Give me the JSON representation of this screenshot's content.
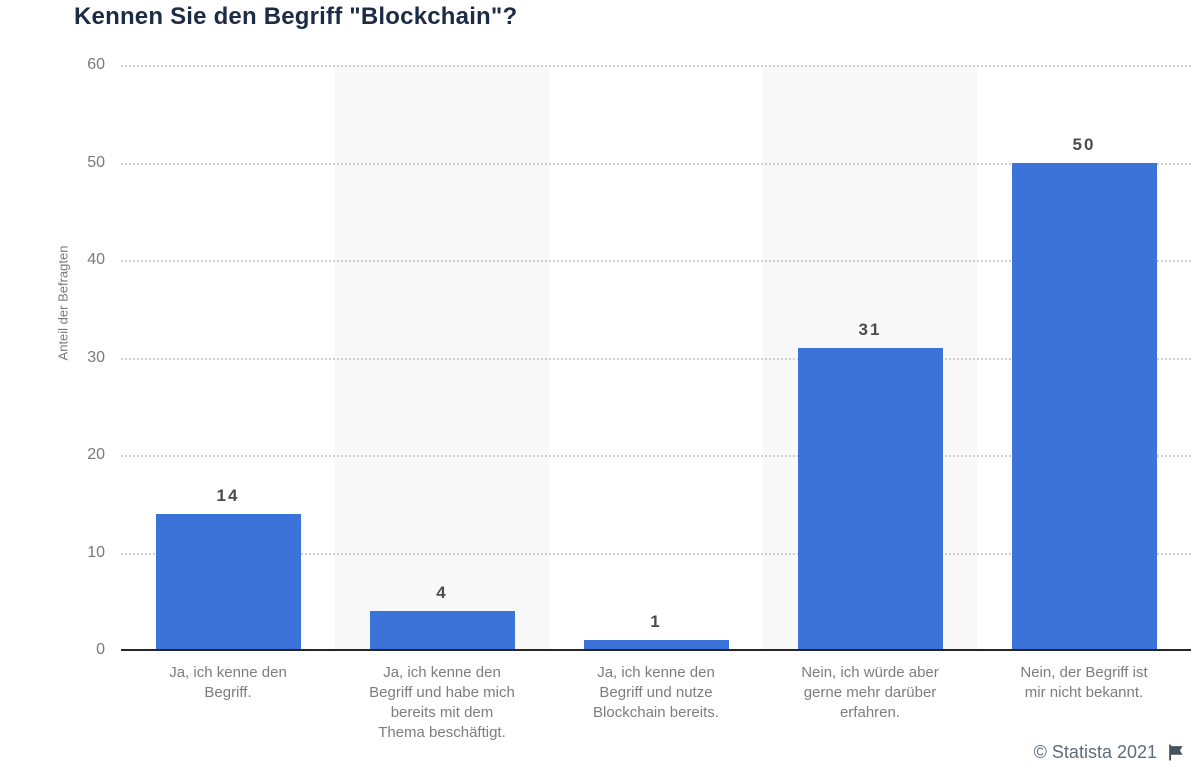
{
  "chart_data": {
    "type": "bar",
    "title": "Kennen Sie den Begriff \"Blockchain\"?",
    "ylabel": "Anteil der Befragten",
    "xlabel": "",
    "categories": [
      "Ja, ich kenne den Begriff.",
      "Ja, ich kenne den Begriff und habe mich bereits mit dem Thema beschäftigt.",
      "Ja, ich kenne den Begriff und nutze Blockchain bereits.",
      "Nein, ich würde aber gerne mehr darüber erfahren.",
      "Nein, der Begriff ist mir nicht bekannt."
    ],
    "categories_display_lines": [
      [
        "Ja, ich kenne den",
        "Begriff."
      ],
      [
        "Ja, ich kenne den",
        "Begriff und habe mich",
        "bereits mit dem",
        "Thema beschäftigt."
      ],
      [
        "Ja, ich kenne den",
        "Begriff und nutze",
        "Blockchain bereits."
      ],
      [
        "Nein, ich würde aber",
        "gerne mehr darüber",
        "erfahren."
      ],
      [
        "Nein, der Begriff ist",
        "mir nicht bekannt."
      ]
    ],
    "values": [
      14,
      4,
      1,
      31,
      50
    ],
    "ylim": [
      0,
      60
    ],
    "yticks": [
      0,
      10,
      20,
      30,
      40,
      50,
      60
    ],
    "grid": "horizontal-dotted",
    "legend": null,
    "colors": {
      "bar": "#3b73d9",
      "stripe": "#f8f8f8",
      "grid": "#cfcfcf",
      "axis": "#262626",
      "title": "#1c2c47",
      "tick": "#7a7a7a",
      "category": "#7d7d7d",
      "value_label": "#4b4b4b",
      "footer": "#5f6b7b",
      "flag": "#47525f"
    }
  },
  "footer": {
    "copyright": "© Statista 2021"
  }
}
